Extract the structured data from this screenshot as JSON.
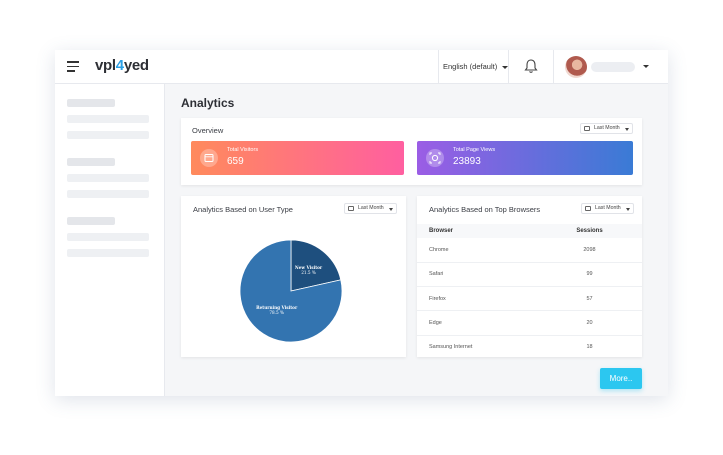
{
  "header": {
    "logo_prefix": "vpl",
    "logo_accent": "4",
    "logo_suffix": "yed",
    "language": "English (default)"
  },
  "page": {
    "title": "Analytics"
  },
  "overview": {
    "title": "Overview",
    "filter": "Last Month",
    "stats": [
      {
        "label": "Total Visitors",
        "value": "659",
        "gradient": [
          "#ff8a5c",
          "#ff5fa0"
        ]
      },
      {
        "label": "Total Page Views",
        "value": "23893",
        "gradient": [
          "#9b5de5",
          "#3a7bd5"
        ]
      }
    ]
  },
  "user_type": {
    "title": "Analytics Based on User Type",
    "filter": "Last Month",
    "chart_data": {
      "type": "pie",
      "categories": [
        "New Visitor",
        "Returning Visitor"
      ],
      "values": [
        21.5,
        78.5
      ],
      "value_labels": [
        "21.5 %",
        "78.5 %"
      ],
      "colors": [
        "#1e4f7e",
        "#3374b0"
      ]
    }
  },
  "browsers": {
    "title": "Analytics Based on Top Browsers",
    "filter": "Last Month",
    "columns": [
      "Browser",
      "Sessions"
    ],
    "rows": [
      [
        "Chrome",
        "2098"
      ],
      [
        "Safari",
        "99"
      ],
      [
        "Firefox",
        "57"
      ],
      [
        "Edge",
        "20"
      ],
      [
        "Samsung Internet",
        "18"
      ]
    ]
  },
  "more_button": "More.."
}
